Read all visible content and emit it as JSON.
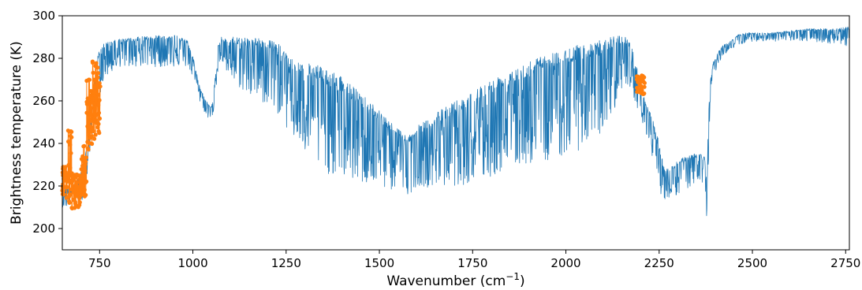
{
  "chart_data": {
    "type": "line",
    "title": "",
    "xlabel": "Wavenumber (cm",
    "xlabel_sup": "−1",
    "xlabel_close": ")",
    "ylabel": "Brightness temperature (K)",
    "xlim": [
      650,
      2760
    ],
    "ylim": [
      190,
      300
    ],
    "xticks": [
      750,
      1000,
      1250,
      1500,
      1750,
      2000,
      2250,
      2500,
      2750
    ],
    "yticks": [
      200,
      220,
      240,
      260,
      280,
      300
    ],
    "grid": false,
    "legend": "none",
    "colors": {
      "spectrum": "#1f77b4",
      "markers": "#ff7f0e"
    },
    "series": [
      {
        "kind": "line",
        "envelope": {
          "x": [
            650,
            665,
            680,
            695,
            705,
            715,
            725,
            735,
            745,
            752,
            760,
            800,
            850,
            900,
            950,
            985,
            1000,
            1010,
            1020,
            1030,
            1040,
            1047,
            1053,
            1060,
            1068,
            1075,
            1100,
            1150,
            1200,
            1240,
            1255,
            1300,
            1350,
            1400,
            1450,
            1500,
            1550,
            1580,
            1600,
            1650,
            1700,
            1750,
            1800,
            1850,
            1900,
            1950,
            2000,
            2050,
            2100,
            2140,
            2160,
            2175,
            2185,
            2195,
            2205,
            2215,
            2225,
            2240,
            2255,
            2265,
            2280,
            2300,
            2320,
            2340,
            2360,
            2372,
            2376,
            2378,
            2380,
            2386,
            2395,
            2405,
            2420,
            2440,
            2460,
            2480,
            2500,
            2550,
            2600,
            2650,
            2700,
            2730,
            2760
          ],
          "upper": [
            218,
            220,
            222,
            225,
            230,
            238,
            250,
            268,
            282,
            287,
            287,
            289,
            290,
            291,
            291,
            289,
            281,
            273,
            266,
            262,
            259,
            257,
            259,
            274,
            287,
            290,
            290,
            290,
            289,
            286,
            281,
            278,
            276,
            271,
            264,
            256,
            247,
            244,
            248,
            254,
            260,
            265,
            270,
            275,
            279,
            282,
            285,
            287,
            289,
            291,
            290,
            287,
            280,
            272,
            264,
            259,
            255,
            248,
            236,
            228,
            229,
            232,
            234,
            235,
            236,
            234,
            226,
            214,
            242,
            268,
            278,
            282,
            286,
            288,
            291,
            292,
            292,
            292,
            293,
            294,
            294,
            294,
            295
          ],
          "lower": [
            210,
            210,
            211,
            212,
            214,
            222,
            235,
            250,
            262,
            262,
            270,
            276,
            276,
            276,
            276,
            276,
            271,
            263,
            259,
            255,
            252,
            251,
            252,
            263,
            274,
            277,
            270,
            262,
            258,
            252,
            245,
            235,
            226,
            224,
            221,
            219,
            217,
            216,
            220,
            219,
            220,
            221,
            224,
            228,
            230,
            232,
            234,
            238,
            245,
            260,
            268,
            266,
            260,
            255,
            250,
            245,
            238,
            228,
            216,
            212,
            214,
            216,
            218,
            220,
            220,
            216,
            205,
            196,
            214,
            255,
            270,
            276,
            281,
            284,
            286,
            287,
            288,
            288,
            288,
            288,
            287,
            287,
            285
          ]
        }
      },
      {
        "kind": "markers",
        "clusters": [
          {
            "xmin": 650,
            "xmax": 665,
            "ymin": 214,
            "ymax": 229
          },
          {
            "xmin": 665,
            "xmax": 675,
            "ymin": 212,
            "ymax": 247
          },
          {
            "xmin": 675,
            "xmax": 700,
            "ymin": 209,
            "ymax": 226
          },
          {
            "xmin": 700,
            "xmax": 715,
            "ymin": 215,
            "ymax": 240
          },
          {
            "xmin": 715,
            "xmax": 730,
            "ymin": 236,
            "ymax": 270
          },
          {
            "xmin": 730,
            "xmax": 752,
            "ymin": 242,
            "ymax": 279
          },
          {
            "xmin": 2190,
            "xmax": 2212,
            "ymin": 263,
            "ymax": 272
          }
        ]
      }
    ]
  }
}
